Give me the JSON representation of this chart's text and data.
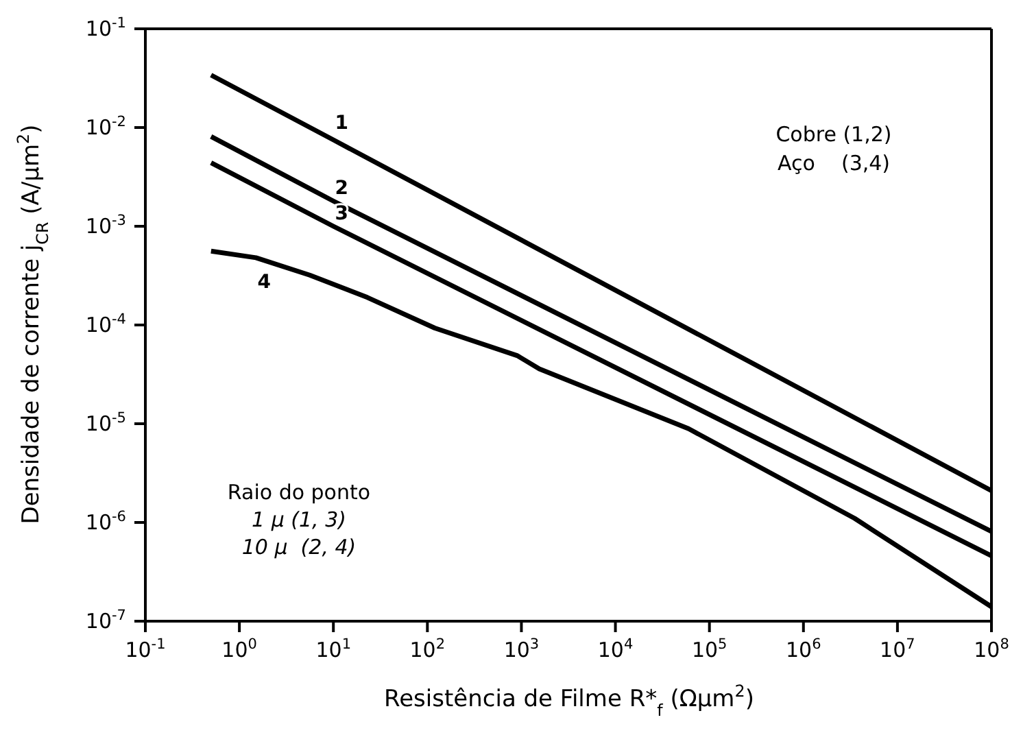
{
  "chart_data": {
    "type": "line",
    "xlabel": "Resistência de Filme R*$_{f}$ (Ωμm$^{2}$)",
    "ylabel": "Densidade de corrente j$_{CR}$ (A/μm$^{2}$)",
    "log": "xy",
    "marker": "none",
    "line_style": "solid",
    "xlim": [
      0.1,
      100000000
    ],
    "ylim": [
      1e-07,
      0.1
    ],
    "xticks": [
      {
        "value": 0.1,
        "label": "10$^{-1}$"
      },
      {
        "value": 1,
        "label": "10$^{0}$"
      },
      {
        "value": 10,
        "label": "10$^{1}$"
      },
      {
        "value": 100,
        "label": "10$^{2}$"
      },
      {
        "value": 1000,
        "label": "10$^{3}$"
      },
      {
        "value": 10000,
        "label": "10$^{4}$"
      },
      {
        "value": 100000,
        "label": "10$^{5}$"
      },
      {
        "value": 1000000,
        "label": "10$^{6}$"
      },
      {
        "value": 10000000,
        "label": "10$^{7}$"
      },
      {
        "value": 100000000,
        "label": "10$^{8}$"
      }
    ],
    "yticks": [
      {
        "value": 1e-07,
        "label": "10$^{-7}$"
      },
      {
        "value": 1e-06,
        "label": "10$^{-6}$"
      },
      {
        "value": 1e-05,
        "label": "10$^{-5}$"
      },
      {
        "value": 0.0001,
        "label": "10$^{-4}$"
      },
      {
        "value": 0.001,
        "label": "10$^{-3}$"
      },
      {
        "value": 0.01,
        "label": "10$^{-2}$"
      },
      {
        "value": 0.1,
        "label": "10$^{-1}$"
      }
    ],
    "series": [
      {
        "name": "1",
        "color": "#000000",
        "x": [
          0.5,
          10,
          100000000
        ],
        "values": [
          0.034,
          0.0075,
          2.1e-06
        ]
      },
      {
        "name": "2",
        "color": "#000000",
        "x": [
          0.5,
          10,
          100000000
        ],
        "values": [
          0.0081,
          0.0018,
          8.1e-07
        ]
      },
      {
        "name": "3",
        "color": "#000000",
        "x": [
          0.5,
          10,
          100000000
        ],
        "values": [
          0.0044,
          0.001,
          4.6e-07
        ]
      },
      {
        "name": "4",
        "color": "#000000",
        "x": [
          0.5,
          1.5,
          5.6,
          23,
          120,
          900,
          1550,
          60000,
          3500000,
          100000000
        ],
        "values": [
          0.00056,
          0.00048,
          0.00032,
          0.00019,
          9.3e-05,
          4.9e-05,
          3.6e-05,
          8.9e-06,
          1.1e-06,
          1.4e-07
        ]
      }
    ],
    "annotations": [
      "Cobre (1,2)",
      "Aço    (3,4)",
      "Raio do ponto",
      "1 μ (1, 3)",
      "10 μ  (2, 4)"
    ]
  }
}
